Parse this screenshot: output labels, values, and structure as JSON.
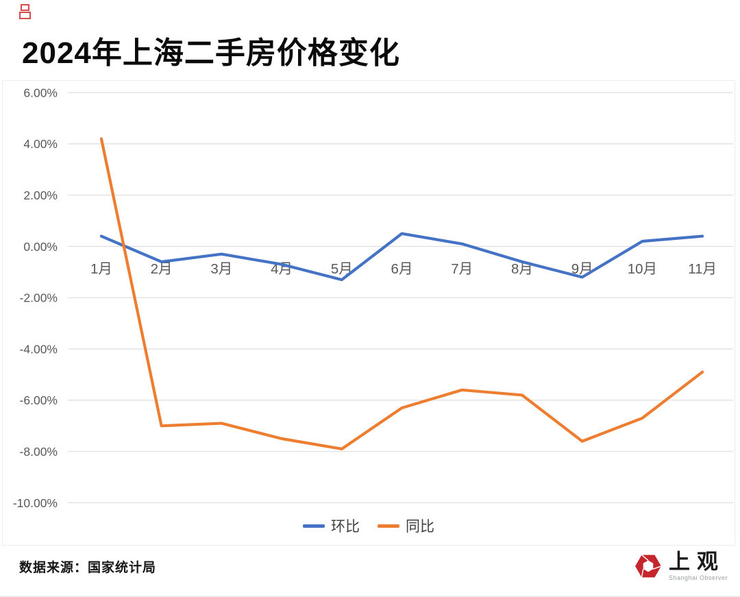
{
  "page": {
    "title": "2024年上海二手房价格变化",
    "footer": {
      "source_label": "数据来源：国家统计局",
      "logo_text": "上观",
      "logo_subtext": "Shanghai Observer",
      "logo_color": "#c5262e"
    }
  },
  "chart_data": {
    "type": "line",
    "title": "2024年上海二手房价格变化",
    "categories": [
      "1月",
      "2月",
      "3月",
      "4月",
      "5月",
      "6月",
      "7月",
      "8月",
      "9月",
      "10月",
      "11月"
    ],
    "series": [
      {
        "name": "环比",
        "color": "#4472C4",
        "values": [
          0.4,
          -0.6,
          -0.3,
          -0.7,
          -1.3,
          0.5,
          0.1,
          -0.6,
          -1.2,
          0.2,
          0.4
        ]
      },
      {
        "name": "同比",
        "color": "#ED7D31",
        "values": [
          4.2,
          -7.0,
          -6.9,
          -7.5,
          -7.9,
          -6.3,
          -5.6,
          -5.8,
          -7.6,
          -6.7,
          -4.9
        ]
      }
    ],
    "unit": "%",
    "ylim": [
      -10,
      6
    ],
    "y_tick_step": 2,
    "y_tick_labels": [
      "6.00%",
      "4.00%",
      "2.00%",
      "0.00%",
      "-2.00%",
      "-4.00%",
      "-6.00%",
      "-8.00%",
      "-10.00%"
    ],
    "grid": true,
    "gridline_color": "#dedede",
    "axis_label_color": "#595959",
    "legend_position": "bottom"
  }
}
